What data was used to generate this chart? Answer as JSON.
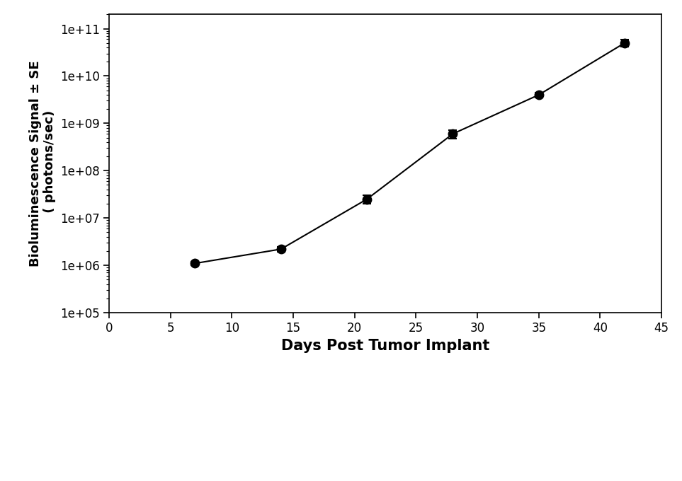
{
  "x": [
    7,
    14,
    21,
    28,
    35,
    42
  ],
  "y": [
    1100000.0,
    2200000.0,
    25000000.0,
    600000000.0,
    4000000000.0,
    50000000000.0
  ],
  "yerr_lower": [
    100000.0,
    250000.0,
    5000000.0,
    120000000.0,
    500000000.0,
    8000000000.0
  ],
  "yerr_upper": [
    100000.0,
    250000.0,
    5000000.0,
    120000000.0,
    500000000.0,
    8000000000.0
  ],
  "xlabel": "Days Post Tumor Implant",
  "ylabel": "Bioluminescence Signal ± SE\n ( photons/sec)",
  "xlim": [
    0,
    45
  ],
  "ylim_log": [
    100000.0,
    200000000000.0
  ],
  "xticks": [
    0,
    5,
    10,
    15,
    20,
    25,
    30,
    35,
    40,
    45
  ],
  "background_color": "#ffffff",
  "line_color": "#000000",
  "marker_color": "#000000",
  "marker_size": 9,
  "line_width": 1.5,
  "xlabel_fontsize": 15,
  "ylabel_fontsize": 13,
  "tick_fontsize": 12,
  "figsize": [
    9.63,
    6.8
  ],
  "dpi": 100
}
